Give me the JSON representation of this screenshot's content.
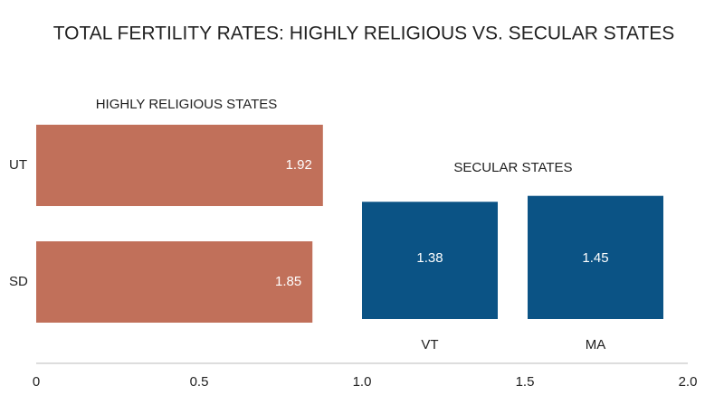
{
  "title": "TOTAL FERTILITY RATES: HIGHLY RELIGIOUS VS. SECULAR STATES",
  "axis": {
    "lim": [
      0,
      2
    ],
    "ticks": [
      0,
      0.5,
      {
        "value": 1,
        "label": "1.0"
      },
      1.5,
      {
        "value": 2,
        "label": "2.0"
      }
    ]
  },
  "chart_data": [
    {
      "type": "hbar",
      "title": "HIGHLY RELIGIOUS STATES",
      "categories": [
        "UT",
        "SD"
      ],
      "values": [
        1.92,
        1.85
      ],
      "color": "#c1705a",
      "xlim": [
        0,
        2
      ]
    },
    {
      "type": "vbar",
      "title": "SECULAR STATES",
      "categories": [
        "VT",
        "MA"
      ],
      "values": [
        1.38,
        1.45
      ],
      "color": "#0b5385",
      "ylim": [
        0,
        2
      ]
    }
  ]
}
